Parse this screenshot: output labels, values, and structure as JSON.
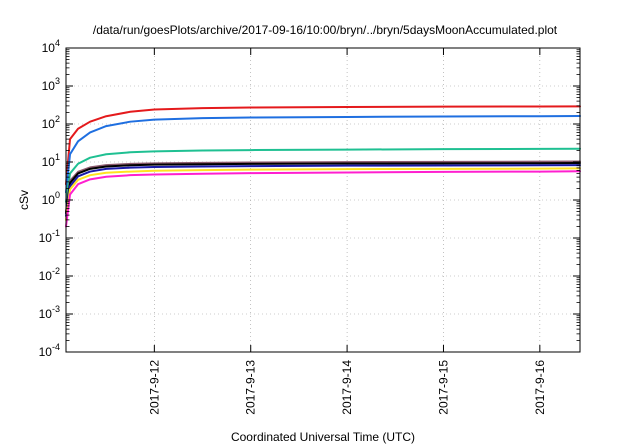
{
  "chart_data": {
    "type": "line",
    "title": "/data/run/goesPlots/archive/2017-09-16/10:00/bryn/../bryn/5daysMoonAccumulated.plot",
    "xlabel": "Coordinated Universal Time (UTC)",
    "ylabel": "cSv",
    "x_scale": "time",
    "y_scale": "log",
    "xlim": [
      "2017-09-11T02:00:00Z",
      "2017-09-16T10:00:00Z"
    ],
    "ylim": [
      0.0001,
      10000
    ],
    "grid": true,
    "legend": "none",
    "x_ticks": [
      "2017-9-12",
      "2017-9-13",
      "2017-9-14",
      "2017-9-15",
      "2017-9-16"
    ],
    "y_ticks": [
      {
        "value": 0.0001,
        "base": "10",
        "exp": "-4"
      },
      {
        "value": 0.001,
        "base": "10",
        "exp": "-3"
      },
      {
        "value": 0.01,
        "base": "10",
        "exp": "-2"
      },
      {
        "value": 0.1,
        "base": "10",
        "exp": "-1"
      },
      {
        "value": 1,
        "base": "10",
        "exp": "0"
      },
      {
        "value": 10,
        "base": "10",
        "exp": "1"
      },
      {
        "value": 100,
        "base": "10",
        "exp": "2"
      },
      {
        "value": 1000,
        "base": "10",
        "exp": "3"
      },
      {
        "value": 10000,
        "base": "10",
        "exp": "4"
      }
    ],
    "series": [
      {
        "color": "#e41a1c",
        "x": [
          "2017-09-11T02:00:00Z",
          "2017-09-11T03:00:00Z",
          "2017-09-11T05:00:00Z",
          "2017-09-11T08:00:00Z",
          "2017-09-11T12:00:00Z",
          "2017-09-11T18:00:00Z",
          "2017-09-12T00:00:00Z",
          "2017-09-12T12:00:00Z",
          "2017-09-13T00:00:00Z",
          "2017-09-14T00:00:00Z",
          "2017-09-15T00:00:00Z",
          "2017-09-16T00:00:00Z",
          "2017-09-16T10:00:00Z"
        ],
        "y": [
          2.6,
          40,
          75,
          115,
          160,
          210,
          240,
          262,
          272,
          280,
          286,
          289,
          291
        ]
      },
      {
        "color": "#1f6fe0",
        "x": [
          "2017-09-11T02:00:00Z",
          "2017-09-11T03:00:00Z",
          "2017-09-11T05:00:00Z",
          "2017-09-11T08:00:00Z",
          "2017-09-11T12:00:00Z",
          "2017-09-11T18:00:00Z",
          "2017-09-12T00:00:00Z",
          "2017-09-12T12:00:00Z",
          "2017-09-13T00:00:00Z",
          "2017-09-14T00:00:00Z",
          "2017-09-15T00:00:00Z",
          "2017-09-16T00:00:00Z",
          "2017-09-16T10:00:00Z"
        ],
        "y": [
          1.6,
          16,
          35,
          60,
          88,
          115,
          130,
          143,
          148,
          153,
          158,
          160,
          162
        ]
      },
      {
        "color": "#1fc092",
        "x": [
          "2017-09-11T02:00:00Z",
          "2017-09-11T03:00:00Z",
          "2017-09-11T05:00:00Z",
          "2017-09-11T08:00:00Z",
          "2017-09-11T12:00:00Z",
          "2017-09-11T18:00:00Z",
          "2017-09-12T00:00:00Z",
          "2017-09-12T12:00:00Z",
          "2017-09-13T00:00:00Z",
          "2017-09-14T00:00:00Z",
          "2017-09-15T00:00:00Z",
          "2017-09-16T00:00:00Z",
          "2017-09-16T10:00:00Z"
        ],
        "y": [
          0.9,
          5,
          9,
          13,
          16,
          18,
          19,
          20,
          20.6,
          21.2,
          21.8,
          22.1,
          22.3
        ]
      },
      {
        "color": "#8c5b6e",
        "x": [
          "2017-09-11T02:00:00Z",
          "2017-09-11T03:00:00Z",
          "2017-09-11T05:00:00Z",
          "2017-09-11T08:00:00Z",
          "2017-09-11T12:00:00Z",
          "2017-09-11T18:00:00Z",
          "2017-09-12T00:00:00Z",
          "2017-09-12T12:00:00Z",
          "2017-09-13T00:00:00Z",
          "2017-09-14T00:00:00Z",
          "2017-09-15T00:00:00Z",
          "2017-09-16T00:00:00Z",
          "2017-09-16T10:00:00Z"
        ],
        "y": [
          0.5,
          3.2,
          5.5,
          7.2,
          8.3,
          8.9,
          9.2,
          9.5,
          9.7,
          9.9,
          10.1,
          10.2,
          10.3
        ]
      },
      {
        "color": "#000000",
        "x": [
          "2017-09-11T02:00:00Z",
          "2017-09-11T03:00:00Z",
          "2017-09-11T05:00:00Z",
          "2017-09-11T08:00:00Z",
          "2017-09-11T12:00:00Z",
          "2017-09-11T18:00:00Z",
          "2017-09-12T00:00:00Z",
          "2017-09-12T12:00:00Z",
          "2017-09-13T00:00:00Z",
          "2017-09-14T00:00:00Z",
          "2017-09-15T00:00:00Z",
          "2017-09-16T00:00:00Z",
          "2017-09-16T10:00:00Z"
        ],
        "y": [
          0.45,
          2.8,
          5,
          6.6,
          7.6,
          8.2,
          8.5,
          8.7,
          8.9,
          9.1,
          9.2,
          9.3,
          9.4
        ]
      },
      {
        "color": "#1a1aa8",
        "x": [
          "2017-09-11T02:00:00Z",
          "2017-09-11T03:00:00Z",
          "2017-09-11T05:00:00Z",
          "2017-09-11T08:00:00Z",
          "2017-09-11T12:00:00Z",
          "2017-09-11T18:00:00Z",
          "2017-09-12T00:00:00Z",
          "2017-09-12T12:00:00Z",
          "2017-09-13T00:00:00Z",
          "2017-09-14T00:00:00Z",
          "2017-09-15T00:00:00Z",
          "2017-09-16T00:00:00Z",
          "2017-09-16T10:00:00Z"
        ],
        "y": [
          0.38,
          2.3,
          4.2,
          5.6,
          6.6,
          7.1,
          7.4,
          7.6,
          7.8,
          8.0,
          8.1,
          8.2,
          8.3
        ]
      },
      {
        "color": "#ffe21f",
        "x": [
          "2017-09-11T02:00:00Z",
          "2017-09-11T03:00:00Z",
          "2017-09-11T05:00:00Z",
          "2017-09-11T08:00:00Z",
          "2017-09-11T12:00:00Z",
          "2017-09-11T18:00:00Z",
          "2017-09-12T00:00:00Z",
          "2017-09-12T12:00:00Z",
          "2017-09-13T00:00:00Z",
          "2017-09-14T00:00:00Z",
          "2017-09-15T00:00:00Z",
          "2017-09-16T00:00:00Z",
          "2017-09-16T10:00:00Z"
        ],
        "y": [
          0.3,
          1.9,
          3.4,
          4.5,
          5.2,
          5.6,
          5.9,
          6.1,
          6.3,
          6.5,
          6.6,
          6.7,
          6.8
        ]
      },
      {
        "color": "#ff1fcf",
        "x": [
          "2017-09-11T02:00:00Z",
          "2017-09-11T03:00:00Z",
          "2017-09-11T05:00:00Z",
          "2017-09-11T08:00:00Z",
          "2017-09-11T12:00:00Z",
          "2017-09-11T18:00:00Z",
          "2017-09-12T00:00:00Z",
          "2017-09-12T12:00:00Z",
          "2017-09-13T00:00:00Z",
          "2017-09-14T00:00:00Z",
          "2017-09-15T00:00:00Z",
          "2017-09-16T00:00:00Z",
          "2017-09-16T10:00:00Z"
        ],
        "y": [
          0.2,
          1.4,
          2.6,
          3.5,
          4.1,
          4.5,
          4.7,
          4.9,
          5.1,
          5.3,
          5.5,
          5.6,
          5.7
        ]
      }
    ]
  }
}
